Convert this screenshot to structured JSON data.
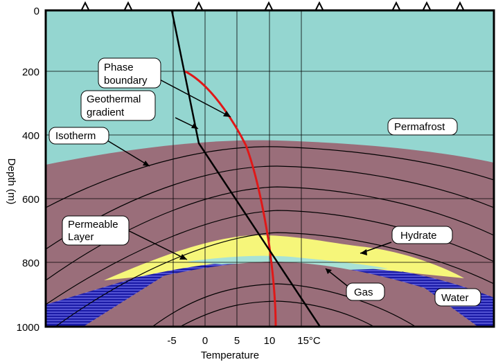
{
  "axes": {
    "y_label": "Depth (m)",
    "y_ticks": [
      "0",
      "200",
      "400",
      "600",
      "800",
      "1000"
    ],
    "x_label": "Temperature",
    "x_ticks": [
      "-5",
      "0",
      "5",
      "10",
      "15°C"
    ]
  },
  "labels": {
    "phase_boundary_line1": "Phase",
    "phase_boundary_line2": "boundary",
    "geothermal_line1": "Geothermal",
    "geothermal_line2": "gradient",
    "isotherm": "Isotherm",
    "permafrost": "Permafrost",
    "permeable_line1": "Permeable",
    "permeable_line2": "Layer",
    "hydrate": "Hydrate",
    "gas": "Gas",
    "water": "Water"
  },
  "colors": {
    "permafrost": "#94d6d0",
    "sediment": "#9a6e7a",
    "hydrate": "#f6f67a",
    "gas": "#a8e2d6",
    "water": "#1a1aa6",
    "phase_boundary": "#e01818",
    "geotherm": "#000000"
  }
}
